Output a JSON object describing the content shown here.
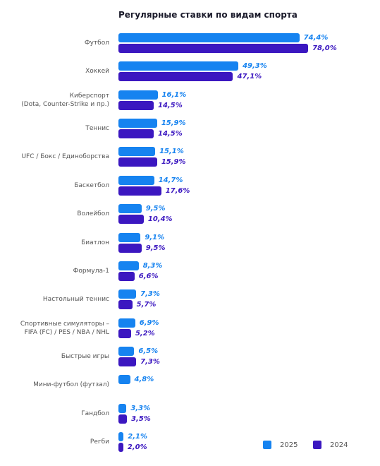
{
  "chart_data": {
    "type": "bar",
    "orientation": "horizontal",
    "title": "Регулярные ставки по видам спорта",
    "categories": [
      "Футбол",
      "Хоккей",
      "Киберспорт\n(Dota, Counter-Strike и пр.)",
      "Теннис",
      "UFC / Бокс / Единоборства",
      "Баскетбол",
      "Волейбол",
      "Биатлон",
      "Формула-1",
      "Настольный теннис",
      "Спортивные симуляторы –\nFIFA (FC) / PES / NBA / NHL",
      "Быстрые игры",
      "Мини-футбол (футзал)",
      "Гандбол",
      "Регби"
    ],
    "series": [
      {
        "name": "2025",
        "color": "#1683f0",
        "values": [
          74.4,
          49.3,
          16.1,
          15.9,
          15.1,
          14.7,
          9.5,
          9.1,
          8.3,
          7.3,
          6.9,
          6.5,
          4.8,
          3.3,
          2.1
        ],
        "value_labels": [
          "74,4%",
          "49,3%",
          "16,1%",
          "15,9%",
          "15,1%",
          "14,7%",
          "9,5%",
          "9,1%",
          "8,3%",
          "7,3%",
          "6,9%",
          "6,5%",
          "4,8%",
          "3,3%",
          "2,1%"
        ]
      },
      {
        "name": "2024",
        "color": "#3b17c0",
        "values": [
          78.0,
          47.1,
          14.5,
          14.5,
          15.9,
          17.6,
          10.4,
          9.5,
          6.6,
          5.7,
          5.2,
          7.3,
          null,
          3.5,
          2.0
        ],
        "value_labels": [
          "78,0%",
          "47,1%",
          "14,5%",
          "14,5%",
          "15,9%",
          "17,6%",
          "10,4%",
          "9,5%",
          "6,6%",
          "5,7%",
          "5,2%",
          "7,3%",
          null,
          "3,5%",
          "2,0%"
        ]
      }
    ]
  }
}
